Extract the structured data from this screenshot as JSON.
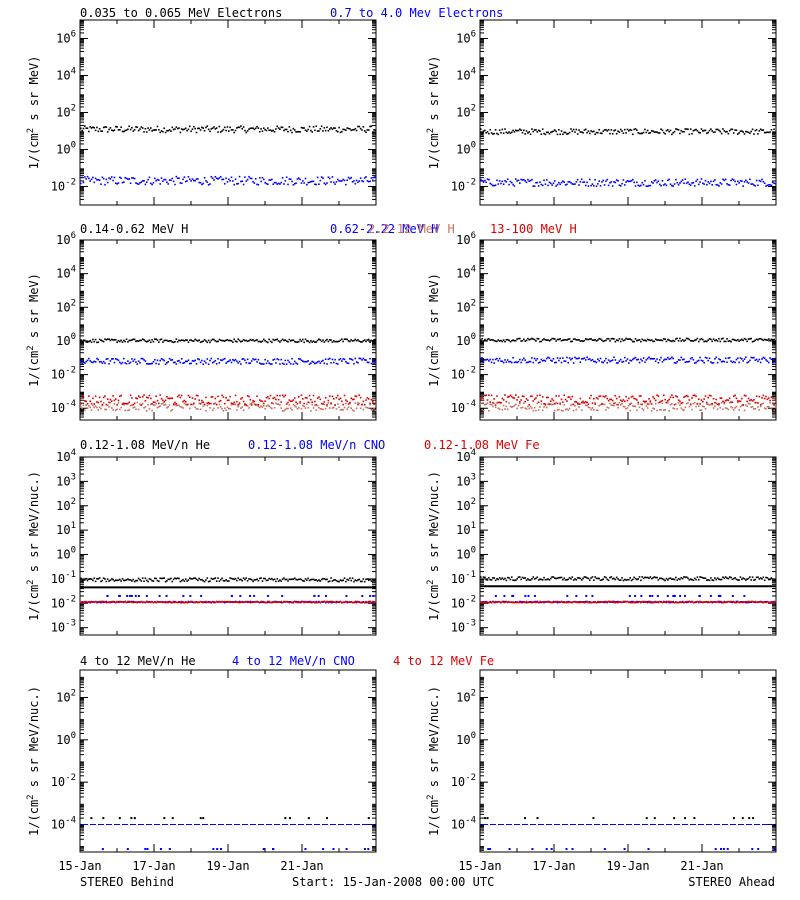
{
  "colors": {
    "black": "#000000",
    "blue": "#0000ff",
    "salmon": "#c87060",
    "red": "#e00000"
  },
  "footer": {
    "left": "STEREO Behind",
    "center": "Start: 15-Jan-2008 00:00 UTC",
    "right": "STEREO Ahead"
  },
  "x_tick_labels": [
    "15-Jan",
    "17-Jan",
    "19-Jan",
    "21-Jan"
  ],
  "chart_data": [
    {
      "id": "electrons",
      "type": "scatter",
      "title": "",
      "ylabel_main": "1/(cm",
      "ylabel_exp": "2",
      "ylabel_rest": " s sr MeV)",
      "yscale": "log",
      "ylim": [
        0.001,
        10000000
      ],
      "ytick_exps": [
        -2,
        0,
        2,
        4,
        6
      ],
      "xlim_days": [
        "15-Jan-2008",
        "23-Jan-2008"
      ],
      "headers": [
        {
          "text": "0.035 to 0.065 MeV Electrons",
          "color": "black"
        },
        {
          "text": "0.7 to 4.0 Mev Electrons",
          "color": "blue"
        }
      ],
      "series": [
        {
          "name": "0.035 to 0.065 MeV Electrons",
          "color": "black",
          "behind": {
            "level": 12,
            "spread": 0.35
          },
          "ahead": {
            "level": 9,
            "spread": 0.3
          }
        },
        {
          "name": "0.7 to 4.0 Mev Electrons",
          "color": "blue",
          "behind": {
            "level": 0.02,
            "spread": 0.45
          },
          "ahead": {
            "level": 0.016,
            "spread": 0.4
          }
        }
      ]
    },
    {
      "id": "protons",
      "type": "scatter",
      "ylabel_main": "1/(cm",
      "ylabel_exp": "2",
      "ylabel_rest": " s sr MeV)",
      "yscale": "log",
      "ylim": [
        2e-05,
        1000000
      ],
      "ytick_exps": [
        -4,
        -2,
        0,
        2,
        4,
        6
      ],
      "headers": [
        {
          "text": "0.14-0.62 MeV H",
          "color": "black"
        },
        {
          "text": "0.62-2.22 MeV H",
          "color": "blue"
        },
        {
          "text": "2.2-12 MeV H",
          "color": "salmon"
        },
        {
          "text": "13-100 MeV H",
          "color": "red"
        }
      ],
      "series": [
        {
          "name": "0.14-0.62 MeV H",
          "color": "black",
          "behind": {
            "level": 1.0,
            "spread": 0.2
          },
          "ahead": {
            "level": 1.1,
            "spread": 0.2
          }
        },
        {
          "name": "0.62-2.22 MeV H",
          "color": "blue",
          "behind": {
            "level": 0.06,
            "spread": 0.35
          },
          "ahead": {
            "level": 0.07,
            "spread": 0.35
          }
        },
        {
          "name": "2.2-12 MeV H",
          "color": "salmon",
          "behind": {
            "level": 0.00012,
            "spread": 0.5
          },
          "ahead": {
            "level": 0.00012,
            "spread": 0.5
          }
        },
        {
          "name": "13-100 MeV H",
          "color": "red",
          "behind": {
            "level": 0.0003,
            "spread": 0.6
          },
          "ahead": {
            "level": 0.0003,
            "spread": 0.6
          }
        }
      ]
    },
    {
      "id": "heavy_low",
      "type": "scatter",
      "ylabel_main": "1/(cm",
      "ylabel_exp": "2",
      "ylabel_rest": " s sr MeV/nuc.)",
      "yscale": "log",
      "ylim": [
        0.0005,
        10000
      ],
      "ytick_exps": [
        -3,
        -2,
        -1,
        0,
        1,
        2,
        3,
        4
      ],
      "headers": [
        {
          "text": "0.12-1.08 MeV/n He",
          "color": "black"
        },
        {
          "text": "0.12-1.08 MeV/n CNO",
          "color": "blue"
        },
        {
          "text": "0.12-1.08 MeV Fe",
          "color": "red"
        }
      ],
      "series": [
        {
          "name": "0.12-1.08 MeV/n He",
          "color": "black",
          "behind": {
            "level": 0.09,
            "spread": 0.15,
            "line": 0.045
          },
          "ahead": {
            "level": 0.1,
            "spread": 0.15,
            "line": 0.05
          }
        },
        {
          "name": "0.12-1.08 MeV/n CNO",
          "color": "blue",
          "behind": {
            "level": 0.011,
            "spread": 0.05,
            "sparse": 0.02
          },
          "ahead": {
            "level": 0.011,
            "spread": 0.05,
            "sparse": 0.02
          }
        },
        {
          "name": "0.12-1.08 MeV Fe",
          "color": "red",
          "behind": {
            "level": 0.011,
            "spread": 0.05
          },
          "ahead": {
            "level": 0.011,
            "spread": 0.05
          }
        }
      ]
    },
    {
      "id": "heavy_high",
      "type": "scatter",
      "ylabel_main": "1/(cm",
      "ylabel_exp": "2",
      "ylabel_rest": " s sr MeV/nuc.)",
      "yscale": "log",
      "ylim": [
        5e-06,
        2000
      ],
      "ytick_exps": [
        -4,
        -2,
        0,
        2
      ],
      "headers": [
        {
          "text": "4 to 12 MeV/n He",
          "color": "black"
        },
        {
          "text": "4 to 12 MeV/n CNO",
          "color": "blue"
        },
        {
          "text": "4 to 12 MeV Fe",
          "color": "red"
        }
      ],
      "series": [
        {
          "name": "4 to 12 MeV/n He",
          "color": "black",
          "behind": {
            "level": 0.0001,
            "sparse_points": 0.0002
          },
          "ahead": {
            "level": 0.0001,
            "sparse_points": 0.0002
          }
        },
        {
          "name": "4 to 12 MeV/n CNO",
          "color": "blue",
          "behind": {
            "level": 0.0001,
            "dash": true,
            "low_points": 7.5e-06
          },
          "ahead": {
            "level": 0.0001,
            "dash": true,
            "low_points": 7.5e-06
          }
        }
      ]
    }
  ]
}
